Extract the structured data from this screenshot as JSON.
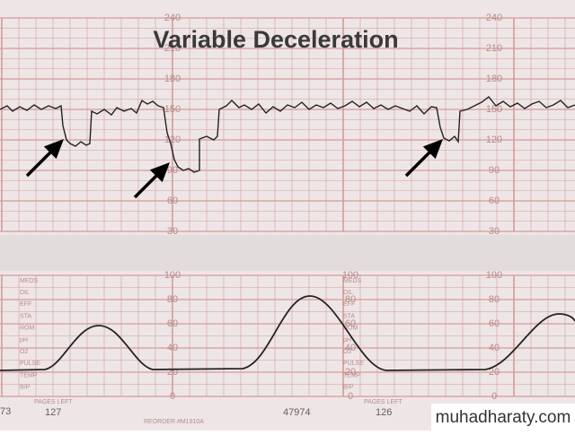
{
  "title": "Variable Deceleration",
  "fhr_scale": [
    "240",
    "210",
    "180",
    "150",
    "120",
    "90",
    "60",
    "30"
  ],
  "uc_scale": [
    "100",
    "80",
    "60",
    "40",
    "20",
    "0"
  ],
  "annotation_labels": [
    "MEDS",
    "DIL",
    "EFF",
    "STA",
    "ROM",
    "pH",
    "O2",
    "PULSE",
    "TEMP",
    "B/P"
  ],
  "footer": {
    "left_number": "73",
    "pages_left_1": "PAGES LEFT",
    "pages_count_1": "127",
    "reorder": "REORDER #M1910A",
    "serial": "47974",
    "pages_left_2": "PAGES LEFT",
    "pages_count_2": "126"
  },
  "watermark": "muhadharaty.com"
}
